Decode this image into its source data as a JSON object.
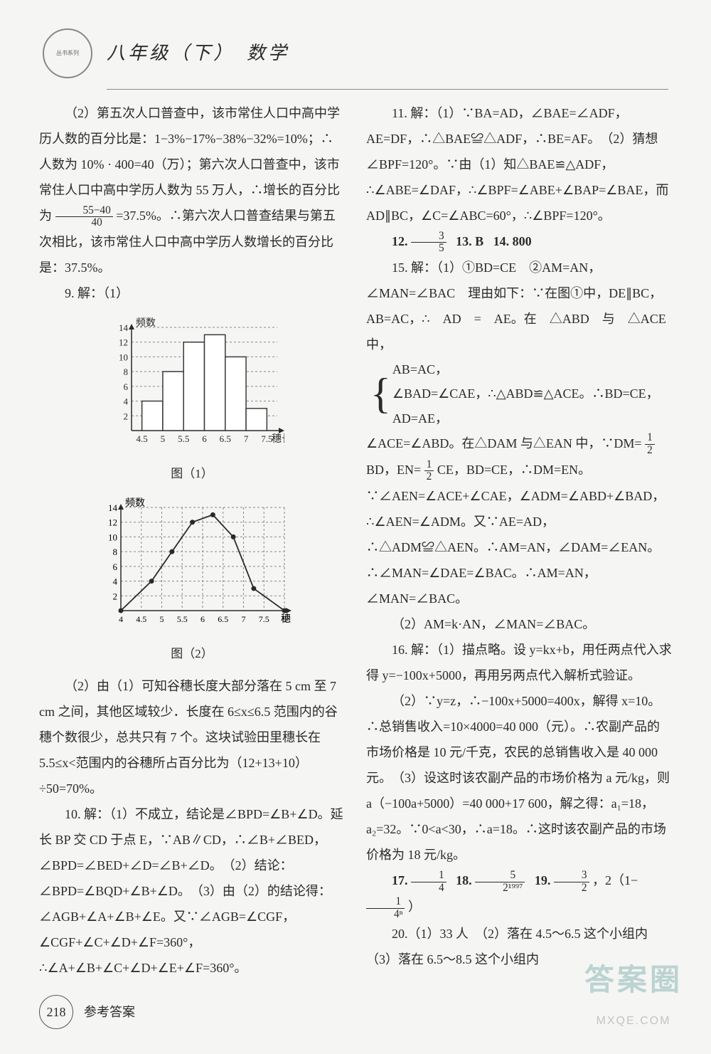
{
  "header": {
    "logo_text": "丛书系列",
    "title": "八年级（下）　数学"
  },
  "left": {
    "p1": "（2）第五次人口普查中，该市常住人口中高中学历人数的百分比是：1−3%−17%−38%−32%=10%；∴人数为 10% · 400=40（万）；第六次人口普查中，该市常住人口中高中学历人数为 55 万人，∴增长的百分比为 ",
    "p1_frac_n": "55−40",
    "p1_frac_d": "40",
    "p1b": " =37.5%。∴第六次人口普查结果与第五次相比，该市常住人口中高中学历人数增长的百分比是：37.5%。",
    "q9_label": "9. 解：（1）",
    "chart1": {
      "type": "bar",
      "ylabel": "频数",
      "xlabel": "穗长",
      "categories": [
        "4.5",
        "5",
        "5.5",
        "6",
        "6.5",
        "7",
        "7.5"
      ],
      "values": [
        4,
        8,
        12,
        13,
        10,
        3
      ],
      "ylim": [
        0,
        14
      ],
      "ytick_step": 2,
      "bar_color": "#ffffff",
      "bar_border": "#3a3a3a",
      "grid_color": "#888888",
      "caption": "图（1）"
    },
    "chart2": {
      "type": "line-frequency-polygon",
      "ylabel": "频数",
      "xlabel": "穗长",
      "x_ticks": [
        "4",
        "4.5",
        "5",
        "5.5",
        "6",
        "6.5",
        "7",
        "7.5",
        "8"
      ],
      "points_x": [
        4,
        4.75,
        5.25,
        5.75,
        6.25,
        6.75,
        7.25,
        8
      ],
      "points_y": [
        0,
        4,
        8,
        12,
        13,
        10,
        3,
        0
      ],
      "ylim": [
        0,
        14
      ],
      "ytick_step": 2,
      "marker": "filled-circle",
      "marker_color": "#2a2a2a",
      "line_color": "#2a2a2a",
      "grid_color": "#888888",
      "caption": "图（2）"
    },
    "p2": "（2）由（1）可知谷穗长度大部分落在 5 cm 至 7 cm 之间，其他区域较少．长度在 6≤x≤6.5 范围内的谷穗个数很少，总共只有 7 个。这块试验田里穗长在 5.5≤x<范围内的谷穗所占百分比为（12+13+10）÷50=70%。",
    "q10": "10. 解：（1）不成立，结论是∠BPD=∠B+∠D。延长 BP 交 CD 于点 E，∵AB∥CD，∴∠B+∠BED，∠BPD=∠BED+∠D=∠B+∠D。　（2）结论：∠BPD=∠BQD+∠B+∠D。　（3）由（2）的结论得：∠AGB+∠A+∠B+∠E。又∵∠AGB=∠CGF，∠CGF+∠C+∠D+∠F=360°，∴∠A+∠B+∠C+∠D+∠E+∠F=360°。"
  },
  "right": {
    "q11": "11. 解：（1）∵BA=AD，∠BAE=∠ADF，AE=DF，∴△BAE≌△ADF，∴BE=AF。　（2）猜想∠BPF=120°。∵由（1）知△BAE≌△ADF，∴∠ABE=∠DAF，∴∠BPF=∠ABE+∠BAP=∠BAE，而 AD∥BC，∠C=∠ABC=60°，∴∠BPF=120°。",
    "q12_label": "12.",
    "q12_frac_n": "3",
    "q12_frac_d": "5",
    "q13": "13. B",
    "q14": "14. 800",
    "q15a": "15. 解：（1）①BD=CE　②AM=AN，∠MAN=∠BAC　理由如下：∵在图①中，DE∥BC，AB=AC，∴　AD　=　AE。在　△ABD　与　△ACE　中，",
    "q15_brace1": "AB=AC，",
    "q15_brace2": "∠BAD=∠CAE，∴△ABD≌△ACE。∴BD=CE，",
    "q15_brace3": "AD=AE，",
    "q15b": "∠ACE=∠ABD。在△DAM 与△EAN 中，∵DM= ",
    "q15_half": "½",
    "q15c": "BD，EN= ",
    "q15d": "CE，BD=CE，∴DM=EN。∵∠AEN=∠ACE+∠CAE，∠ADM=∠ABD+∠BAD，∴∠AEN=∠ADM。又∵AE=AD，∴△ADM≌△AEN。∴AM=AN，∠DAM=∠EAN。∴∠MAN=∠DAE=∠BAC。∴AM=AN，∠MAN=∠BAC。",
    "q15e": "（2）AM=k·AN，∠MAN=∠BAC。",
    "q16a": "16. 解：（1）描点略。设 y=kx+b，用任两点代入求得 y=−100x+5000，再用另两点代入解析式验证。",
    "q16b": "（2）∵y=z，∴−100x+5000=400x，解得 x=10。∴总销售收入=10×4000=40 000（元）。∴农副产品的市场价格是 10 元/千克，农民的总销售收入是 40 000元。　（3）设这时该农副产品的市场价格为 a 元/kg，则 a（−100a+5000）=40 000+17 600，解之得：a₁=18，a₂=32。∵0<a<30，∴a=18。∴这时该农副产品的市场价格为 18 元/kg。",
    "q17_label": "17.",
    "q17_n": "1",
    "q17_d": "4",
    "q18_label": "18.",
    "q18_n": "5",
    "q18_d": "2¹⁹⁹⁷",
    "q19_label": "19.",
    "q19_n": "3",
    "q19_d": "2",
    "q19_tail_a": "，2（1− ",
    "q19_tail_n": "1",
    "q19_tail_d": "4ⁿ",
    "q19_tail_b": "）",
    "q20": "20.（1）33 人　（2）落在 4.5～6.5 这个小组内",
    "q20b": "（3）落在 6.5～8.5 这个小组内"
  },
  "footer": {
    "page": "218",
    "label": "参考答案"
  },
  "watermark": {
    "big": "答案圈",
    "small": "MXQE.COM"
  }
}
